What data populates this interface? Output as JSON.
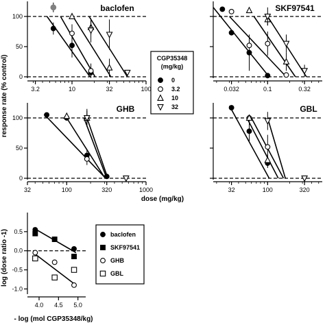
{
  "figure": {
    "ylabel": "response rate (% control)",
    "xlabel": "dose (mg/kg)"
  },
  "legend_top": {
    "title_line1": "CGP35348",
    "title_line2": "(mg/kg)",
    "entries": [
      {
        "label": "0",
        "marker": "filled-circle"
      },
      {
        "label": "3.2",
        "marker": "open-circle"
      },
      {
        "label": "10",
        "marker": "open-triangle-up"
      },
      {
        "label": "32",
        "marker": "open-triangle-down"
      }
    ]
  },
  "legend_bottom": {
    "entries": [
      {
        "label": "baclofen",
        "marker": "filled-circle"
      },
      {
        "label": "SKF97541",
        "marker": "filled-square"
      },
      {
        "label": "GHB",
        "marker": "open-circle"
      },
      {
        "label": "GBL",
        "marker": "open-square"
      }
    ]
  },
  "colors": {
    "ink": "#000000",
    "filled_marker": "#000000",
    "first_point_gray": "#808080"
  },
  "chart_data": [
    {
      "type": "scatter",
      "title": "baclofen",
      "xscale": "log",
      "xlim": [
        2.5,
        100
      ],
      "ylim": [
        0,
        125
      ],
      "xticks": [
        3.2,
        10,
        32,
        100
      ],
      "xticklabels": [
        "3.2",
        "10",
        "32",
        "100"
      ],
      "yticks": [
        0,
        50,
        100
      ],
      "yticklabels": [
        "0",
        "50",
        "100"
      ],
      "show_yticklabels": true,
      "reference_lines_y": [
        0,
        100
      ],
      "series": [
        {
          "name": "0",
          "marker": "filled-circle",
          "x": [
            5.6,
            10,
            18
          ],
          "y": [
            80,
            52,
            7
          ],
          "yerr": [
            10,
            20,
            8
          ],
          "line": [
            [
              4.6,
              100
            ],
            [
              17.5,
              0
            ]
          ]
        },
        {
          "name": "3.2",
          "marker": "open-circle",
          "x": [
            10,
            18
          ],
          "y": [
            72,
            10
          ],
          "yerr": [
            15,
            12
          ],
          "line": [
            [
              7.0,
              100
            ],
            [
              20.5,
              0
            ]
          ]
        },
        {
          "name": "10",
          "marker": "open-triangle-up",
          "x": [
            10,
            18,
            32
          ],
          "y": [
            100,
            82,
            15
          ],
          "yerr": [
            0,
            12,
            15
          ],
          "line": [
            [
              10.3,
              100
            ],
            [
              33.5,
              0
            ]
          ]
        },
        {
          "name": "32",
          "marker": "open-triangle-down",
          "x": [
            18,
            32,
            56
          ],
          "y": [
            77,
            70,
            7
          ],
          "yerr": [
            20,
            25,
            0
          ],
          "line": [
            [
              17.0,
              100
            ],
            [
              56,
              0
            ]
          ]
        },
        {
          "name": "",
          "marker": "filled-circle-gray",
          "x": [
            5.6
          ],
          "y": [
            115
          ],
          "yerr": [
            8
          ]
        }
      ]
    },
    {
      "type": "scatter",
      "title": "SKF97541",
      "xscale": "log",
      "xlim": [
        0.018,
        0.56
      ],
      "ylim": [
        0,
        125
      ],
      "xticks": [
        0.032,
        0.1,
        0.32
      ],
      "xticklabels": [
        "0.032",
        "0.1",
        "0.32"
      ],
      "yticks": [
        0,
        50,
        100
      ],
      "yticklabels": [
        "",
        "",
        ""
      ],
      "show_yticklabels": false,
      "reference_lines_y": [
        0,
        100
      ],
      "series": [
        {
          "name": "0",
          "marker": "filled-circle",
          "x": [
            0.024,
            0.032,
            0.056,
            0.1
          ],
          "y": [
            112,
            73,
            40,
            2
          ],
          "yerr": [
            0,
            0,
            30,
            0
          ],
          "line": [
            [
              0.018,
              115
            ],
            [
              0.105,
              0
            ]
          ]
        },
        {
          "name": "3.2",
          "marker": "open-circle",
          "x": [
            0.032,
            0.056,
            0.1,
            0.18
          ],
          "y": [
            108,
            52,
            55,
            3
          ],
          "yerr": [
            0,
            15,
            20,
            0
          ],
          "line": [
            [
              0.03,
              100
            ],
            [
              0.18,
              0
            ]
          ]
        },
        {
          "name": "10",
          "marker": "open-triangle-up",
          "x": [
            0.056,
            0.1,
            0.18
          ],
          "y": [
            110,
            95,
            25
          ],
          "yerr": [
            0,
            10,
            15
          ],
          "line": [
            [
              0.065,
              100
            ],
            [
              0.24,
              0
            ]
          ]
        },
        {
          "name": "32",
          "marker": "open-triangle-down",
          "x": [
            0.1,
            0.18,
            0.32
          ],
          "y": [
            100,
            55,
            10
          ],
          "yerr": [
            15,
            15,
            10
          ],
          "line": [
            [
              0.1,
              100
            ],
            [
              0.34,
              0
            ]
          ]
        }
      ]
    },
    {
      "type": "scatter",
      "title": "GHB",
      "xscale": "log",
      "xlim": [
        32,
        1000
      ],
      "ylim": [
        0,
        125
      ],
      "xticks": [
        32,
        100,
        320,
        1000
      ],
      "xticklabels": [
        "32",
        "100",
        "320",
        "1000"
      ],
      "yticks": [
        0,
        50,
        100
      ],
      "yticklabels": [
        "0",
        "50",
        "100"
      ],
      "show_yticklabels": true,
      "reference_lines_y": [
        0,
        100
      ],
      "series": [
        {
          "name": "0",
          "marker": "filled-circle",
          "x": [
            56,
            100,
            180,
            320
          ],
          "y": [
            105,
            100,
            38,
            3
          ],
          "yerr": [
            0,
            0,
            10,
            0
          ],
          "line": [
            [
              52,
              106
            ],
            [
              310,
              0
            ]
          ]
        },
        {
          "name": "3.2",
          "marker": "open-circle",
          "x": [
            180
          ],
          "y": [
            32
          ],
          "yerr": [
            10
          ],
          "line": [
            [
              100,
              100
            ],
            [
              305,
              0
            ]
          ]
        },
        {
          "name": "10",
          "marker": "open-triangle-up",
          "x": [
            100,
            180
          ],
          "y": [
            103,
            100
          ],
          "yerr": [
            0,
            15
          ],
          "line": [
            [
              165,
              100
            ],
            [
              320,
              0
            ]
          ]
        },
        {
          "name": "32",
          "marker": "open-triangle-down",
          "x": [
            180,
            560
          ],
          "y": [
            100,
            0
          ],
          "yerr": [
            12,
            0
          ],
          "line": [
            [
              180,
              100
            ],
            [
              330,
              0
            ]
          ]
        }
      ]
    },
    {
      "type": "scatter",
      "title": "GBL",
      "xscale": "log",
      "xlim": [
        18,
        560
      ],
      "ylim": [
        0,
        125
      ],
      "xticks": [
        32,
        100,
        320
      ],
      "xticklabels": [
        "32",
        "100",
        "320"
      ],
      "yticks": [
        0,
        50,
        100
      ],
      "yticklabels": [
        "",
        "",
        ""
      ],
      "show_yticklabels": false,
      "reference_lines_y": [
        0,
        100
      ],
      "series": [
        {
          "name": "0",
          "marker": "filled-circle",
          "x": [
            32,
            56,
            100
          ],
          "y": [
            117,
            78,
            25
          ],
          "yerr": [
            0,
            18,
            8
          ],
          "line": [
            [
              30,
              120
            ],
            [
              105,
              0
            ]
          ]
        },
        {
          "name": "3.2",
          "marker": "open-circle",
          "x": [
            56,
            100
          ],
          "y": [
            100,
            52
          ],
          "yerr": [
            0,
            20
          ],
          "line": [
            [
              52,
              100
            ],
            [
              140,
              0
            ]
          ]
        },
        {
          "name": "10",
          "marker": "open-triangle-up",
          "x": [
            56,
            100
          ],
          "y": [
            100,
            30
          ],
          "yerr": [
            0,
            10
          ],
          "line": [
            [
              60,
              100
            ],
            [
              165,
              0
            ]
          ]
        },
        {
          "name": "32",
          "marker": "open-triangle-down",
          "x": [
            100,
            320
          ],
          "y": [
            95,
            0
          ],
          "yerr": [
            15,
            0
          ],
          "line": [
            [
              100,
              100
            ],
            [
              175,
              0
            ]
          ]
        }
      ]
    },
    {
      "type": "scatter",
      "title": "",
      "xlabel": "- log (mol CGP35348/kg)",
      "ylabel": "log (dose ratio -1)",
      "xscale": "linear",
      "xlim": [
        3.7,
        5.2
      ],
      "ylim": [
        -1.1,
        1.0
      ],
      "xticks": [
        4.0,
        4.5,
        5.0
      ],
      "xticklabels": [
        "4.0",
        "4.5",
        "5.0"
      ],
      "yticks": [
        -1.0,
        -0.5,
        0.0,
        0.5
      ],
      "yticklabels": [
        "-1.0",
        "-0.5",
        "0.0",
        "0.5"
      ],
      "show_yticklabels": true,
      "reference_lines_y": [
        0
      ],
      "series": [
        {
          "name": "baclofen",
          "marker": "filled-circle",
          "x": [
            3.9,
            4.4,
            4.9
          ],
          "y": [
            0.55,
            0.3,
            0.05
          ],
          "line": [
            [
              3.85,
              0.6
            ],
            [
              4.95,
              -0.05
            ]
          ]
        },
        {
          "name": "SKF97541",
          "marker": "filled-square",
          "x": [
            3.9,
            4.4,
            4.9
          ],
          "y": [
            0.45,
            0.3,
            -0.15
          ],
          "line": null
        },
        {
          "name": "GHB",
          "marker": "open-circle",
          "x": [
            3.9,
            4.4,
            4.9
          ],
          "y": [
            -0.05,
            -0.3,
            -0.9
          ],
          "line": [
            [
              3.85,
              -0.05
            ],
            [
              4.95,
              -0.9
            ]
          ]
        },
        {
          "name": "GBL",
          "marker": "open-square",
          "x": [
            3.9,
            4.4,
            4.9
          ],
          "y": [
            -0.2,
            -0.7,
            -0.5
          ],
          "line": null
        }
      ]
    }
  ]
}
